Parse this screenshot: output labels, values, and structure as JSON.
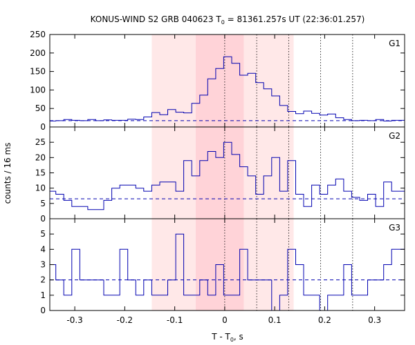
{
  "chart_data": {
    "type": "histogram",
    "title": "KONUS-WIND S2 GRB 040623 T0 = 81361.257s UT (22:36:01.257)",
    "title_parts": {
      "prefix": "KONUS-WIND S2 GRB 040623 T",
      "subscript": "0",
      "suffix": " = 81361.257s UT (22:36:01.257)"
    },
    "xlabel_parts": {
      "prefix": "T - T",
      "subscript": "0",
      "suffix": ", s"
    },
    "ylabel": "counts / 16 ms",
    "xlim": [
      -0.35,
      0.36
    ],
    "x_ticks": [
      -0.3,
      -0.2,
      -0.1,
      0,
      0.1,
      0.2,
      0.3
    ],
    "x_tick_labels": [
      "-0.3",
      "-0.2",
      "-0.1",
      "0",
      "0.1",
      "0.2",
      "0.3"
    ],
    "shaded_regions": [
      {
        "from": -0.146,
        "to": 0.138,
        "color": "#ffe8e8"
      },
      {
        "from": -0.058,
        "to": 0.038,
        "color": "#ffd3d8"
      }
    ],
    "vertical_dotted_lines": [
      0,
      0.064,
      0.128,
      0.192,
      0.256
    ],
    "bin_width": 0.016,
    "panels": [
      {
        "name": "G1",
        "ylim": [
          0,
          250
        ],
        "y_ticks": [
          0,
          50,
          100,
          150,
          200,
          250
        ],
        "background_level": 17,
        "x_edges": [
          -0.35,
          -0.338,
          -0.322,
          -0.306,
          -0.29,
          -0.274,
          -0.258,
          -0.242,
          -0.226,
          -0.21,
          -0.194,
          -0.178,
          -0.162,
          -0.146,
          -0.13,
          -0.114,
          -0.098,
          -0.082,
          -0.066,
          -0.05,
          -0.034,
          -0.018,
          -0.002,
          0.014,
          0.03,
          0.046,
          0.062,
          0.078,
          0.094,
          0.11,
          0.126,
          0.142,
          0.158,
          0.174,
          0.19,
          0.206,
          0.222,
          0.238,
          0.254,
          0.27,
          0.286,
          0.302,
          0.318,
          0.334,
          0.36
        ],
        "values": [
          16,
          17,
          20,
          18,
          17,
          20,
          17,
          19,
          18,
          18,
          21,
          20,
          27,
          39,
          33,
          47,
          40,
          38,
          64,
          86,
          130,
          158,
          190,
          172,
          140,
          145,
          120,
          103,
          84,
          58,
          42,
          36,
          43,
          37,
          32,
          35,
          25,
          20,
          17,
          18,
          17,
          20,
          16,
          18
        ]
      },
      {
        "name": "G2",
        "ylim": [
          0,
          30
        ],
        "y_ticks": [
          0,
          5,
          10,
          15,
          20,
          25
        ],
        "background_level": 6.5,
        "x_edges": [
          -0.35,
          -0.338,
          -0.322,
          -0.306,
          -0.29,
          -0.274,
          -0.258,
          -0.242,
          -0.226,
          -0.21,
          -0.194,
          -0.178,
          -0.162,
          -0.146,
          -0.13,
          -0.114,
          -0.098,
          -0.082,
          -0.066,
          -0.05,
          -0.034,
          -0.018,
          -0.002,
          0.014,
          0.03,
          0.046,
          0.062,
          0.078,
          0.094,
          0.11,
          0.126,
          0.142,
          0.158,
          0.174,
          0.19,
          0.206,
          0.222,
          0.238,
          0.254,
          0.27,
          0.286,
          0.302,
          0.318,
          0.334,
          0.36
        ],
        "values": [
          9,
          8,
          6,
          4,
          4,
          3,
          3,
          6,
          10,
          11,
          11,
          10,
          9,
          11,
          12,
          12,
          9,
          19,
          14,
          19,
          22,
          20,
          25,
          21,
          17,
          14,
          8,
          14,
          20,
          9,
          19,
          8,
          4,
          11,
          8,
          11,
          13,
          9,
          7,
          6,
          8,
          4,
          12,
          9
        ]
      },
      {
        "name": "G3",
        "ylim": [
          0,
          6
        ],
        "y_ticks": [
          0,
          1,
          2,
          3,
          4,
          5
        ],
        "background_level": 2,
        "x_edges": [
          -0.35,
          -0.338,
          -0.322,
          -0.306,
          -0.29,
          -0.274,
          -0.258,
          -0.242,
          -0.226,
          -0.21,
          -0.194,
          -0.178,
          -0.162,
          -0.146,
          -0.13,
          -0.114,
          -0.098,
          -0.082,
          -0.066,
          -0.05,
          -0.034,
          -0.018,
          -0.002,
          0.014,
          0.03,
          0.046,
          0.062,
          0.078,
          0.094,
          0.11,
          0.126,
          0.142,
          0.158,
          0.174,
          0.19,
          0.206,
          0.222,
          0.238,
          0.254,
          0.27,
          0.286,
          0.302,
          0.318,
          0.334,
          0.36
        ],
        "values": [
          3,
          2,
          1,
          4,
          2,
          2,
          2,
          1,
          1,
          4,
          2,
          1,
          2,
          1,
          1,
          2,
          5,
          1,
          1,
          2,
          1,
          3,
          1,
          1,
          4,
          2,
          2,
          2,
          0,
          1,
          4,
          3,
          1,
          1,
          0,
          1,
          1,
          3,
          1,
          1,
          2,
          2,
          3,
          4
        ]
      }
    ]
  },
  "colors": {
    "series": "#0000b0",
    "background_line": "#0000b0",
    "shade_outer": "#ffe8e8",
    "shade_inner": "#ffd3d8",
    "axis": "#000000"
  }
}
